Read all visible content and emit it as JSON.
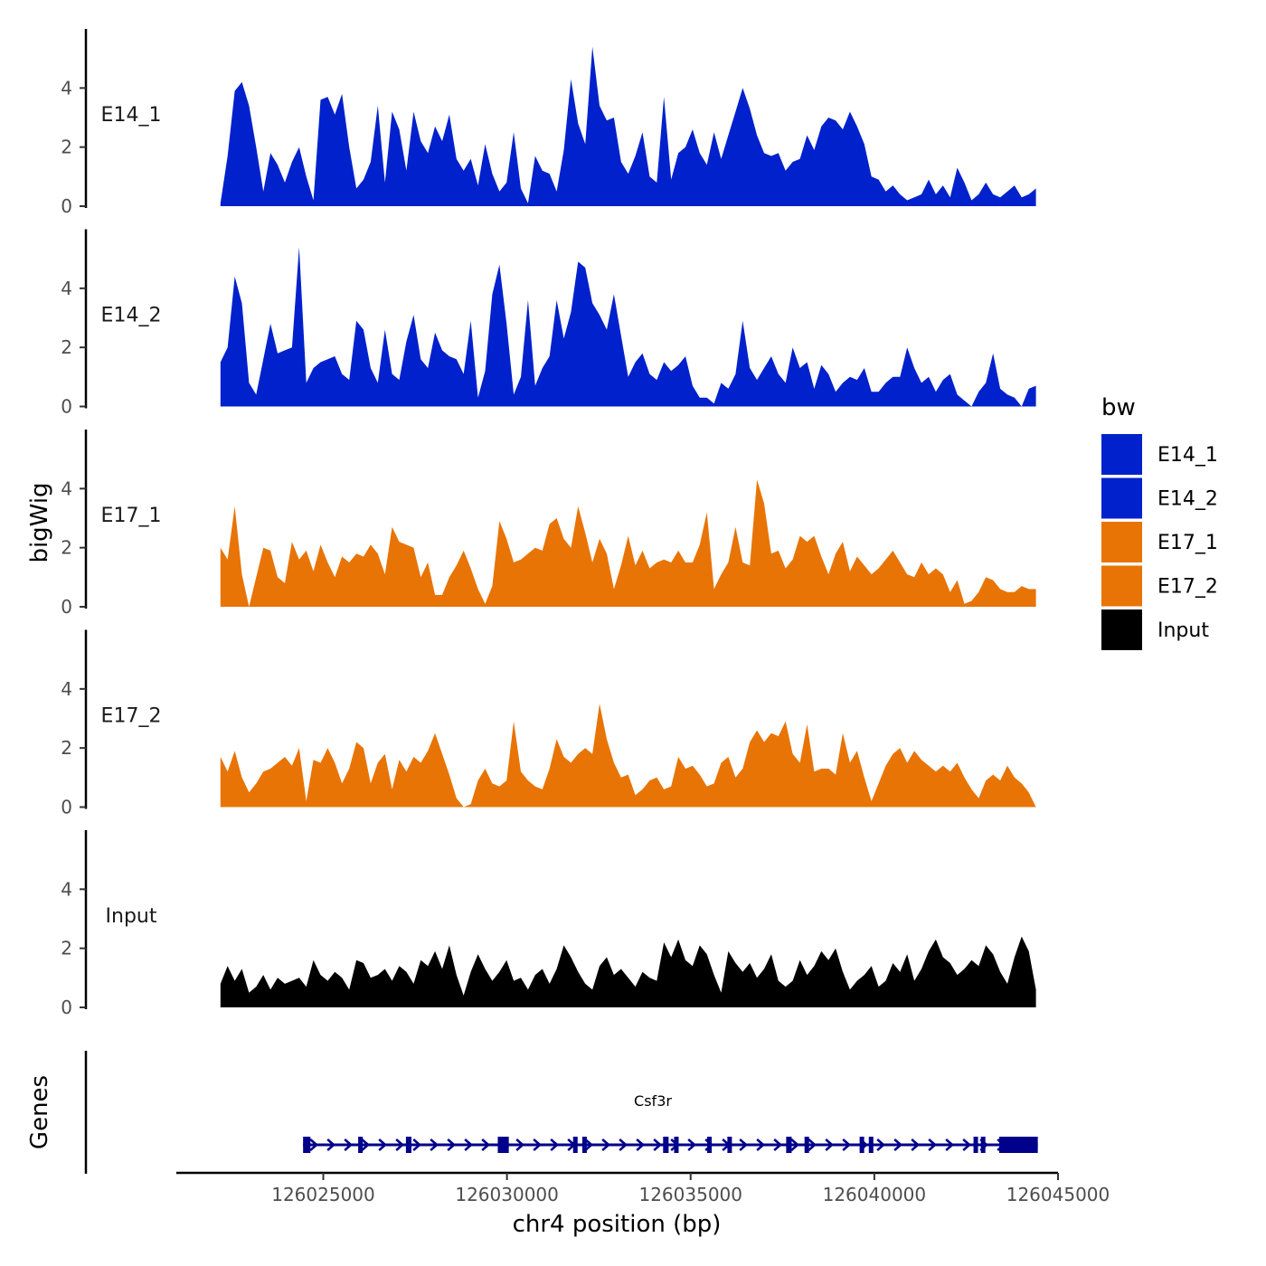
{
  "chart_data": {
    "type": "area",
    "title": "",
    "ylabel": "bigWig",
    "xlabel": "chr4 position (bp)",
    "genes_ylabel": "Genes",
    "ylim": [
      0,
      6
    ],
    "xlim": [
      126021000,
      126045000
    ],
    "x_ticks": [
      126025000,
      126030000,
      126035000,
      126040000,
      126045000
    ],
    "x_tick_labels": [
      "126025000",
      "126030000",
      "126035000",
      "126040000",
      "126045000"
    ],
    "y_ticks": [
      0,
      2,
      4
    ],
    "y_tick_labels": [
      "0",
      "2",
      "4"
    ],
    "legend": {
      "title": "bw",
      "position": "right",
      "entries": [
        {
          "label": "E14_1",
          "color": "#0021CC"
        },
        {
          "label": "E14_2",
          "color": "#0021CC"
        },
        {
          "label": "E17_1",
          "color": "#E87405"
        },
        {
          "label": "E17_2",
          "color": "#E87405"
        },
        {
          "label": "Input",
          "color": "#000000"
        }
      ]
    },
    "series": [
      {
        "name": "E14_1",
        "color": "#0021CC",
        "x_start": 126022200,
        "x_end": 126044400,
        "values": [
          0.1,
          1.7,
          3.9,
          4.2,
          3.4,
          2.0,
          0.5,
          1.8,
          1.4,
          0.8,
          1.5,
          2.0,
          1.0,
          0.2,
          3.6,
          3.7,
          3.1,
          3.8,
          2.0,
          0.6,
          0.9,
          1.5,
          3.4,
          0.8,
          3.2,
          2.6,
          1.2,
          3.2,
          2.2,
          1.8,
          2.7,
          2.2,
          3.1,
          1.6,
          1.2,
          1.6,
          0.7,
          2.1,
          1.1,
          0.5,
          0.8,
          2.5,
          0.6,
          0.1,
          1.7,
          1.2,
          1.1,
          0.5,
          1.9,
          4.3,
          2.8,
          2.1,
          5.4,
          3.4,
          2.9,
          3.0,
          1.5,
          1.1,
          1.7,
          2.5,
          1.0,
          0.8,
          3.7,
          0.9,
          1.8,
          2.0,
          2.6,
          1.8,
          1.4,
          2.5,
          1.6,
          2.4,
          3.2,
          4.0,
          3.3,
          2.4,
          1.8,
          1.7,
          1.8,
          1.2,
          1.5,
          1.6,
          2.4,
          1.9,
          2.7,
          3.0,
          2.9,
          2.6,
          3.2,
          2.7,
          2.1,
          1.0,
          0.9,
          0.5,
          0.7,
          0.4,
          0.2,
          0.3,
          0.4,
          0.9,
          0.4,
          0.7,
          0.3,
          1.3,
          0.8,
          0.2,
          0.4,
          0.8,
          0.4,
          0.3,
          0.5,
          0.7,
          0.3,
          0.4,
          0.6
        ]
      },
      {
        "name": "E14_2",
        "color": "#0021CC",
        "x_start": 126022200,
        "x_end": 126044400,
        "values": [
          1.5,
          2.0,
          4.4,
          3.5,
          0.8,
          0.4,
          1.6,
          2.8,
          1.8,
          1.9,
          2.0,
          5.4,
          0.8,
          1.3,
          1.5,
          1.6,
          1.7,
          1.1,
          0.9,
          2.9,
          2.6,
          1.3,
          0.8,
          2.6,
          1.1,
          0.9,
          2.2,
          3.1,
          1.6,
          1.3,
          2.5,
          1.9,
          1.7,
          1.6,
          1.1,
          2.9,
          0.3,
          1.2,
          3.8,
          4.8,
          2.8,
          0.4,
          1.0,
          3.6,
          0.7,
          1.3,
          1.7,
          3.6,
          2.3,
          3.2,
          4.9,
          4.7,
          3.5,
          3.1,
          2.6,
          3.8,
          2.4,
          1.0,
          1.5,
          1.8,
          1.1,
          0.9,
          1.5,
          1.2,
          1.4,
          1.7,
          0.7,
          0.3,
          0.3,
          0.1,
          0.8,
          0.6,
          1.1,
          2.9,
          1.3,
          0.9,
          1.3,
          1.7,
          1.1,
          0.8,
          2.0,
          1.3,
          1.5,
          0.6,
          1.4,
          1.1,
          0.5,
          0.8,
          1.0,
          0.9,
          1.3,
          0.5,
          0.5,
          0.8,
          1.0,
          1.0,
          2.0,
          1.3,
          0.8,
          1.0,
          0.5,
          0.9,
          1.1,
          0.4,
          0.2,
          0.0,
          0.5,
          0.8,
          1.8,
          0.6,
          0.4,
          0.3,
          0.0,
          0.6,
          0.7
        ]
      },
      {
        "name": "E17_1",
        "color": "#E87405",
        "x_start": 126022200,
        "x_end": 126044400,
        "values": [
          2.0,
          1.6,
          3.4,
          1.1,
          0.0,
          1.0,
          2.0,
          1.9,
          1.0,
          0.8,
          2.2,
          1.6,
          1.9,
          1.2,
          2.1,
          1.5,
          1.0,
          1.7,
          1.5,
          1.8,
          1.7,
          2.1,
          1.8,
          1.1,
          2.7,
          2.2,
          2.1,
          2.0,
          1.0,
          1.5,
          0.4,
          0.4,
          1.0,
          1.4,
          1.9,
          1.3,
          0.6,
          0.1,
          0.7,
          2.9,
          2.3,
          1.5,
          1.6,
          1.8,
          2.0,
          1.9,
          2.8,
          3.0,
          2.3,
          2.0,
          3.4,
          2.5,
          1.5,
          2.3,
          1.8,
          0.6,
          1.4,
          2.4,
          1.4,
          1.9,
          1.3,
          1.5,
          1.6,
          1.5,
          1.9,
          1.5,
          1.5,
          2.1,
          3.2,
          0.6,
          1.1,
          1.5,
          2.7,
          1.5,
          1.4,
          4.3,
          3.5,
          1.8,
          1.9,
          1.3,
          1.6,
          2.4,
          2.2,
          2.4,
          1.7,
          1.1,
          1.8,
          2.2,
          1.2,
          1.7,
          1.4,
          1.1,
          1.3,
          1.6,
          1.9,
          1.5,
          1.1,
          1.0,
          1.5,
          1.1,
          1.3,
          1.1,
          0.5,
          0.9,
          0.1,
          0.2,
          0.5,
          1.0,
          0.9,
          0.6,
          0.5,
          0.5,
          0.7,
          0.6,
          0.6
        ]
      },
      {
        "name": "E17_2",
        "color": "#E87405",
        "x_start": 126022200,
        "x_end": 126044400,
        "values": [
          1.7,
          1.2,
          1.9,
          1.0,
          0.5,
          0.8,
          1.2,
          1.3,
          1.5,
          1.7,
          1.4,
          2.0,
          0.2,
          1.6,
          1.5,
          2.0,
          1.5,
          0.8,
          1.3,
          2.2,
          2.0,
          0.8,
          1.5,
          1.8,
          0.6,
          1.6,
          1.2,
          1.7,
          1.5,
          1.9,
          2.5,
          1.8,
          1.1,
          0.3,
          0.0,
          0.1,
          0.9,
          1.3,
          0.8,
          0.7,
          0.9,
          2.9,
          1.2,
          0.9,
          0.7,
          0.6,
          1.3,
          2.3,
          1.7,
          1.5,
          1.8,
          2.0,
          1.8,
          3.5,
          2.3,
          1.5,
          1.0,
          1.1,
          0.4,
          0.6,
          0.9,
          1.0,
          0.6,
          0.7,
          1.7,
          1.3,
          1.4,
          1.1,
          0.7,
          0.8,
          1.5,
          1.7,
          1.0,
          1.3,
          2.2,
          2.6,
          2.2,
          2.5,
          2.4,
          2.9,
          1.8,
          1.5,
          2.8,
          1.2,
          1.3,
          1.3,
          1.1,
          2.5,
          1.5,
          1.9,
          1.0,
          0.2,
          0.8,
          1.4,
          1.8,
          2.0,
          1.5,
          1.9,
          1.6,
          1.4,
          1.2,
          1.4,
          1.2,
          1.5,
          1.0,
          0.6,
          0.3,
          0.9,
          1.1,
          0.9,
          1.4,
          1.0,
          0.8,
          0.5,
          0.0
        ]
      },
      {
        "name": "Input",
        "color": "#000000",
        "x_start": 126022200,
        "x_end": 126044400,
        "values": [
          0.8,
          1.4,
          0.9,
          1.3,
          0.5,
          0.7,
          1.1,
          0.6,
          1.0,
          0.8,
          0.9,
          1.0,
          0.7,
          1.6,
          1.1,
          0.9,
          1.2,
          1.0,
          0.6,
          1.6,
          1.5,
          1.0,
          1.1,
          1.3,
          0.9,
          1.4,
          1.2,
          0.8,
          1.6,
          1.4,
          1.9,
          1.3,
          2.1,
          1.1,
          0.4,
          1.2,
          1.8,
          1.3,
          0.9,
          1.2,
          1.6,
          0.9,
          1.0,
          0.6,
          1.1,
          1.3,
          0.8,
          1.3,
          2.1,
          1.7,
          1.2,
          0.8,
          0.6,
          1.4,
          1.7,
          1.1,
          1.3,
          1.0,
          0.7,
          1.2,
          1.0,
          0.9,
          2.2,
          1.7,
          2.3,
          1.6,
          1.4,
          2.1,
          1.8,
          1.1,
          0.5,
          1.9,
          1.5,
          1.2,
          1.5,
          1.0,
          1.3,
          1.8,
          0.9,
          0.7,
          0.9,
          1.6,
          1.1,
          1.4,
          1.9,
          1.6,
          2.0,
          1.2,
          0.6,
          0.9,
          1.1,
          1.4,
          0.7,
          0.9,
          1.5,
          1.2,
          1.8,
          0.9,
          1.3,
          1.9,
          2.3,
          1.7,
          1.5,
          1.1,
          1.3,
          1.6,
          1.4,
          2.1,
          1.8,
          1.2,
          0.8,
          1.7,
          2.4,
          1.9,
          0.6
        ]
      }
    ],
    "genes": [
      {
        "name": "Csf3r",
        "strand": "+",
        "start": 126024450,
        "end": 126044450,
        "exons": [
          [
            126024450,
            126024650
          ],
          [
            126025950,
            126026000
          ],
          [
            126027250,
            126027400
          ],
          [
            126029750,
            126030050
          ],
          [
            126031800,
            126031900
          ],
          [
            126032050,
            126032150
          ],
          [
            126034250,
            126034400
          ],
          [
            126034550,
            126034650
          ],
          [
            126035450,
            126035550
          ],
          [
            126036000,
            126036100
          ],
          [
            126037600,
            126037750
          ],
          [
            126038100,
            126038200
          ],
          [
            126039600,
            126039700
          ],
          [
            126039850,
            126039950
          ],
          [
            126042700,
            126042800
          ],
          [
            126042900,
            126043000
          ],
          [
            126043400,
            126044450
          ]
        ]
      }
    ]
  }
}
